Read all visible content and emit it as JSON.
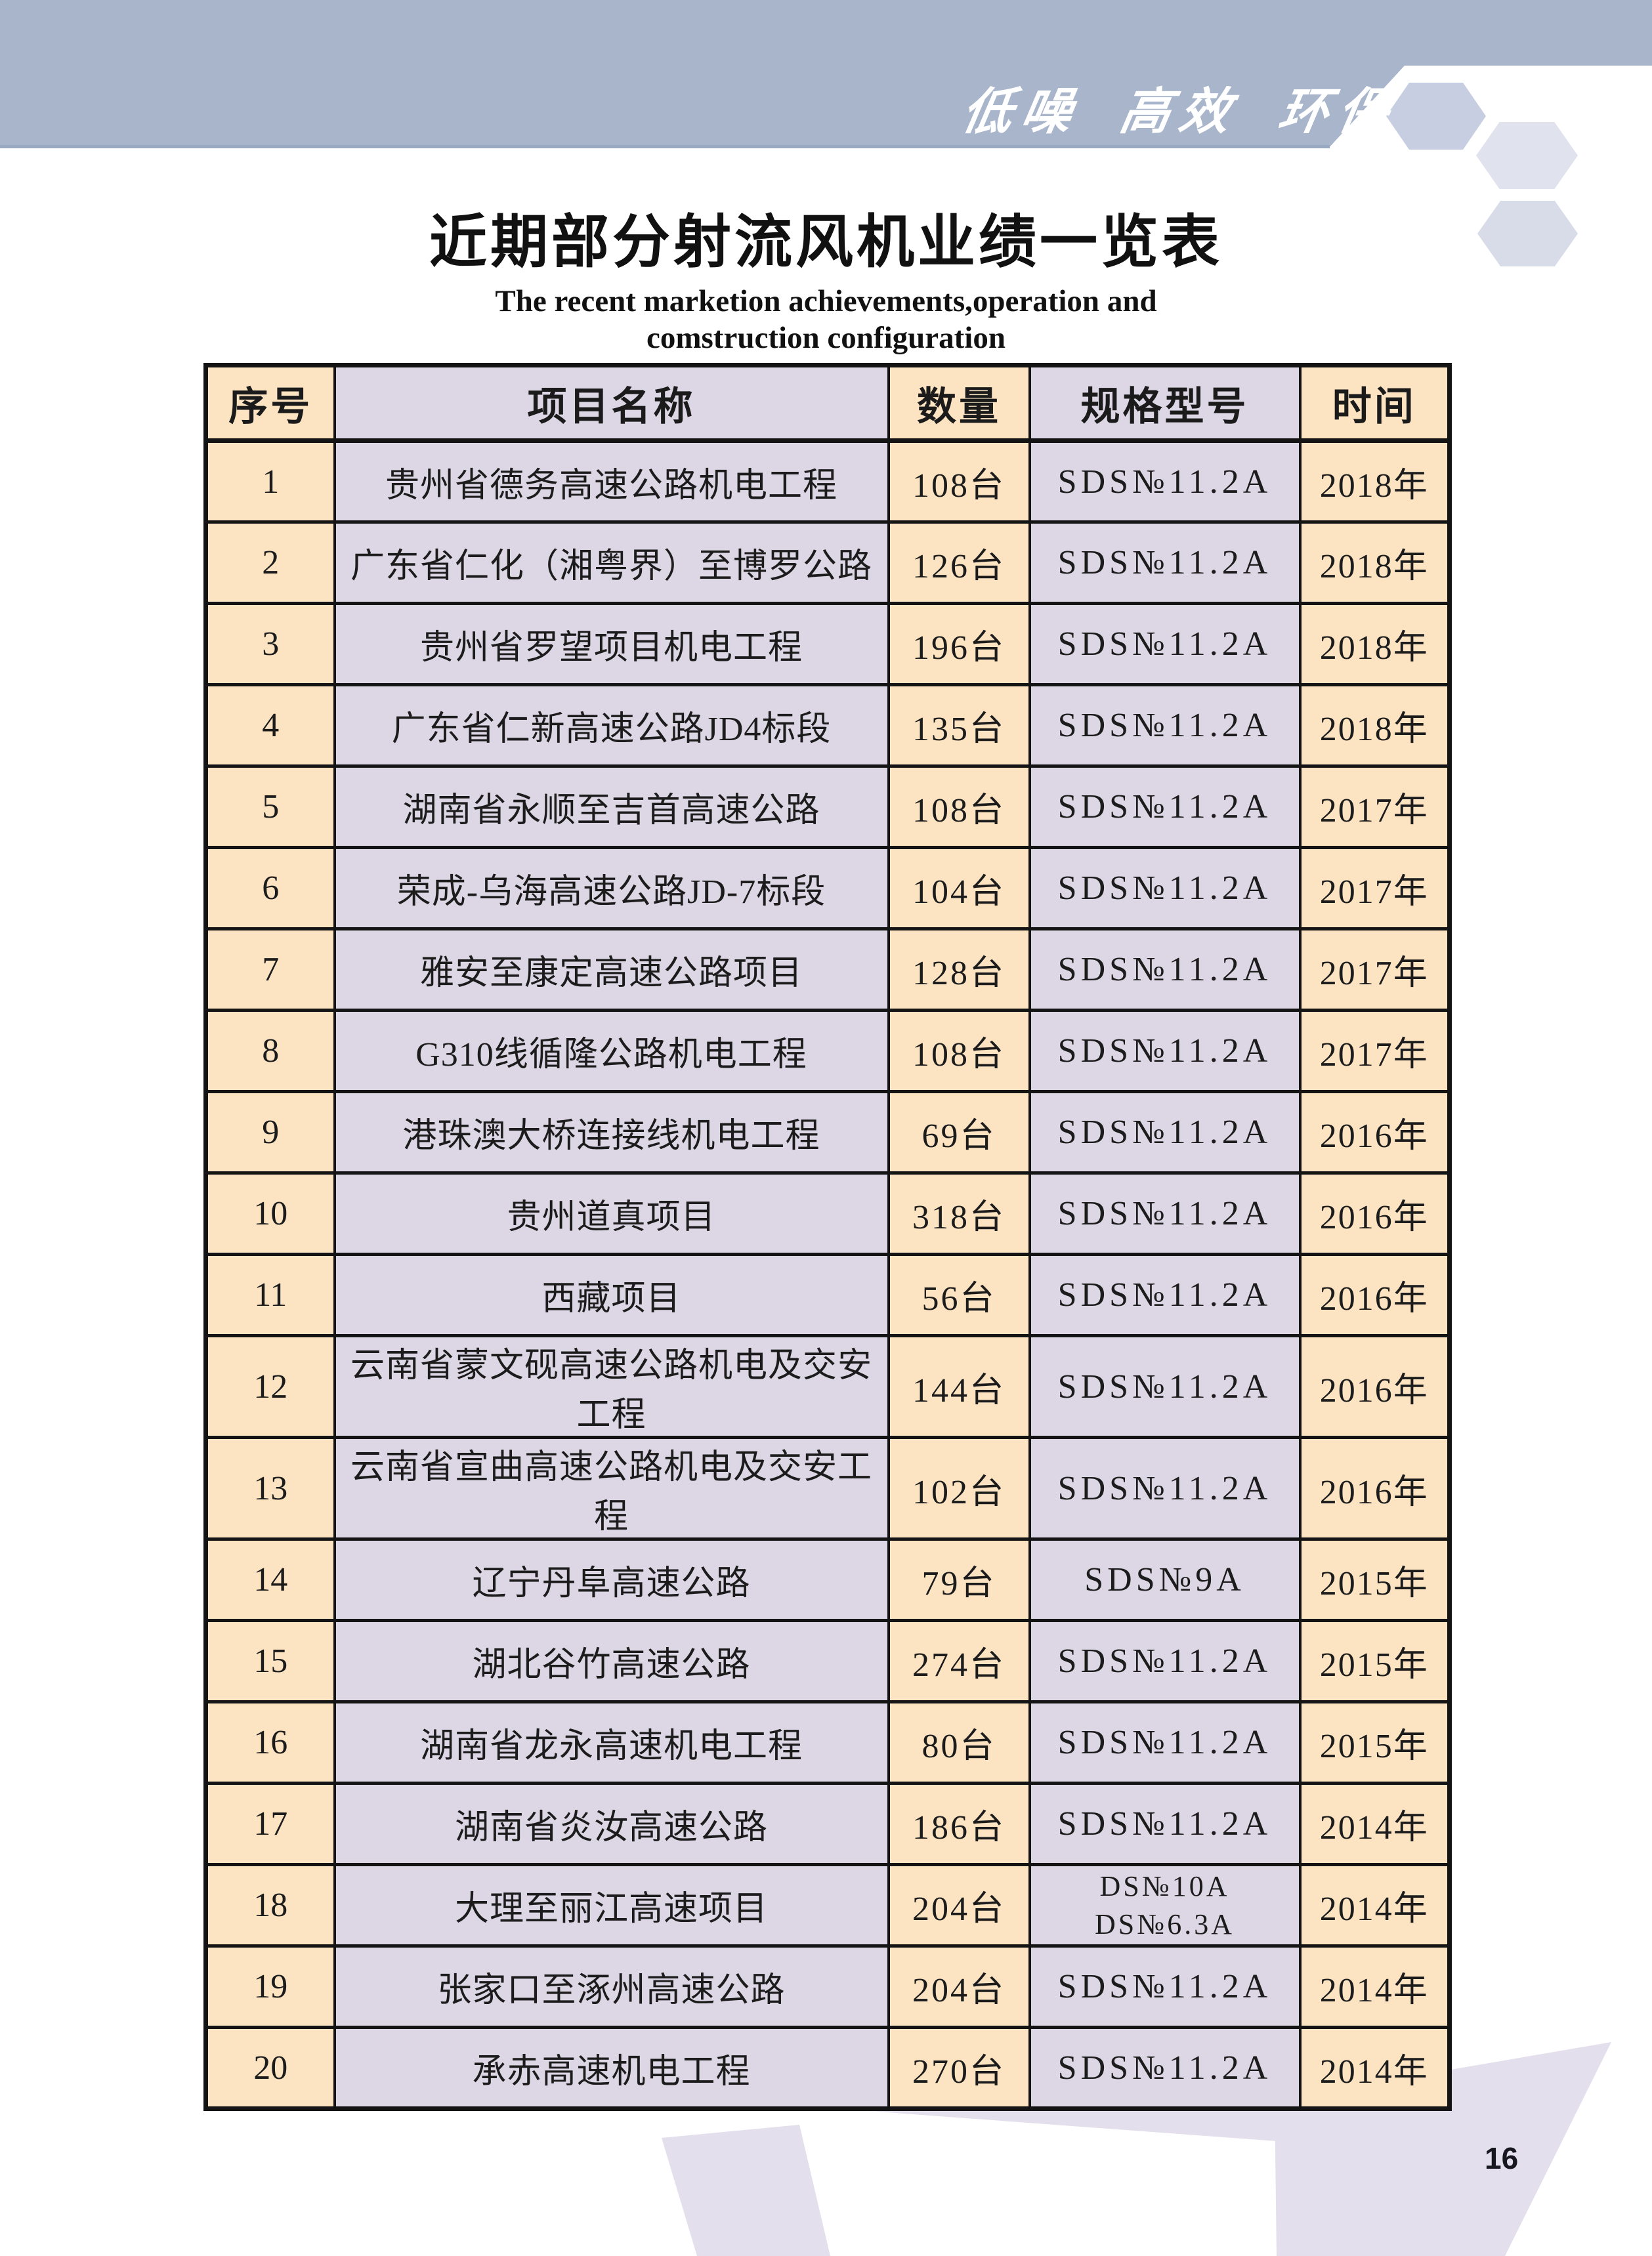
{
  "header_band": {
    "slogan": "低噪 高效 环保"
  },
  "title": {
    "zh": "近期部分射流风机业绩一览表",
    "en_line1": "The recent marketion achievements,operation and",
    "en_line2": "comstruction configuration"
  },
  "table": {
    "columns": [
      "序号",
      "项目名称",
      "数量",
      "规格型号",
      "时间"
    ],
    "rows": [
      {
        "no": "1",
        "project": "贵州省德务高速公路机电工程",
        "qty": "108台",
        "spec": [
          "SDS№11.2A"
        ],
        "year": "2018年"
      },
      {
        "no": "2",
        "project": "广东省仁化（湘粤界）至博罗公路",
        "qty": "126台",
        "spec": [
          "SDS№11.2A"
        ],
        "year": "2018年"
      },
      {
        "no": "3",
        "project": "贵州省罗望项目机电工程",
        "qty": "196台",
        "spec": [
          "SDS№11.2A"
        ],
        "year": "2018年"
      },
      {
        "no": "4",
        "project": "广东省仁新高速公路JD4标段",
        "qty": "135台",
        "spec": [
          "SDS№11.2A"
        ],
        "year": "2018年"
      },
      {
        "no": "5",
        "project": "湖南省永顺至吉首高速公路",
        "qty": "108台",
        "spec": [
          "SDS№11.2A"
        ],
        "year": "2017年"
      },
      {
        "no": "6",
        "project": "荣成-乌海高速公路JD-7标段",
        "qty": "104台",
        "spec": [
          "SDS№11.2A"
        ],
        "year": "2017年"
      },
      {
        "no": "7",
        "project": "雅安至康定高速公路项目",
        "qty": "128台",
        "spec": [
          "SDS№11.2A"
        ],
        "year": "2017年"
      },
      {
        "no": "8",
        "project": "G310线循隆公路机电工程",
        "qty": "108台",
        "spec": [
          "SDS№11.2A"
        ],
        "year": "2017年"
      },
      {
        "no": "9",
        "project": "港珠澳大桥连接线机电工程",
        "qty": "69台",
        "spec": [
          "SDS№11.2A"
        ],
        "year": "2016年"
      },
      {
        "no": "10",
        "project": "贵州道真项目",
        "qty": "318台",
        "spec": [
          "SDS№11.2A"
        ],
        "year": "2016年"
      },
      {
        "no": "11",
        "project": "西藏项目",
        "qty": "56台",
        "spec": [
          "SDS№11.2A"
        ],
        "year": "2016年"
      },
      {
        "no": "12",
        "project": "云南省蒙文砚高速公路机电及交安工程",
        "qty": "144台",
        "spec": [
          "SDS№11.2A"
        ],
        "year": "2016年"
      },
      {
        "no": "13",
        "project": "云南省宣曲高速公路机电及交安工程",
        "qty": "102台",
        "spec": [
          "SDS№11.2A"
        ],
        "year": "2016年"
      },
      {
        "no": "14",
        "project": "辽宁丹阜高速公路",
        "qty": "79台",
        "spec": [
          "SDS№9A"
        ],
        "year": "2015年"
      },
      {
        "no": "15",
        "project": "湖北谷竹高速公路",
        "qty": "274台",
        "spec": [
          "SDS№11.2A"
        ],
        "year": "2015年"
      },
      {
        "no": "16",
        "project": "湖南省龙永高速机电工程",
        "qty": "80台",
        "spec": [
          "SDS№11.2A"
        ],
        "year": "2015年"
      },
      {
        "no": "17",
        "project": "湖南省炎汝高速公路",
        "qty": "186台",
        "spec": [
          "SDS№11.2A"
        ],
        "year": "2014年"
      },
      {
        "no": "18",
        "project": "大理至丽江高速项目",
        "qty": "204台",
        "spec": [
          "DS№10A",
          "DS№6.3A"
        ],
        "year": "2014年"
      },
      {
        "no": "19",
        "project": "张家口至涿州高速公路",
        "qty": "204台",
        "spec": [
          "SDS№11.2A"
        ],
        "year": "2014年"
      },
      {
        "no": "20",
        "project": "承赤高速机电工程",
        "qty": "270台",
        "spec": [
          "SDS№11.2A"
        ],
        "year": "2014年"
      }
    ]
  },
  "footer": {
    "page_number": "16"
  },
  "colors": {
    "band": "#a8b5cb",
    "band-edge": "#9aa9c2",
    "peach": "#fce4c2",
    "lavender": "#ddd7e5",
    "ink": "#1b1b1b",
    "hex1": "#c8cee1",
    "hex2": "#e0e2ed",
    "hex3": "#d8dbe8",
    "swoosh": "#e4dfec",
    "slogan": "#ffffff"
  }
}
